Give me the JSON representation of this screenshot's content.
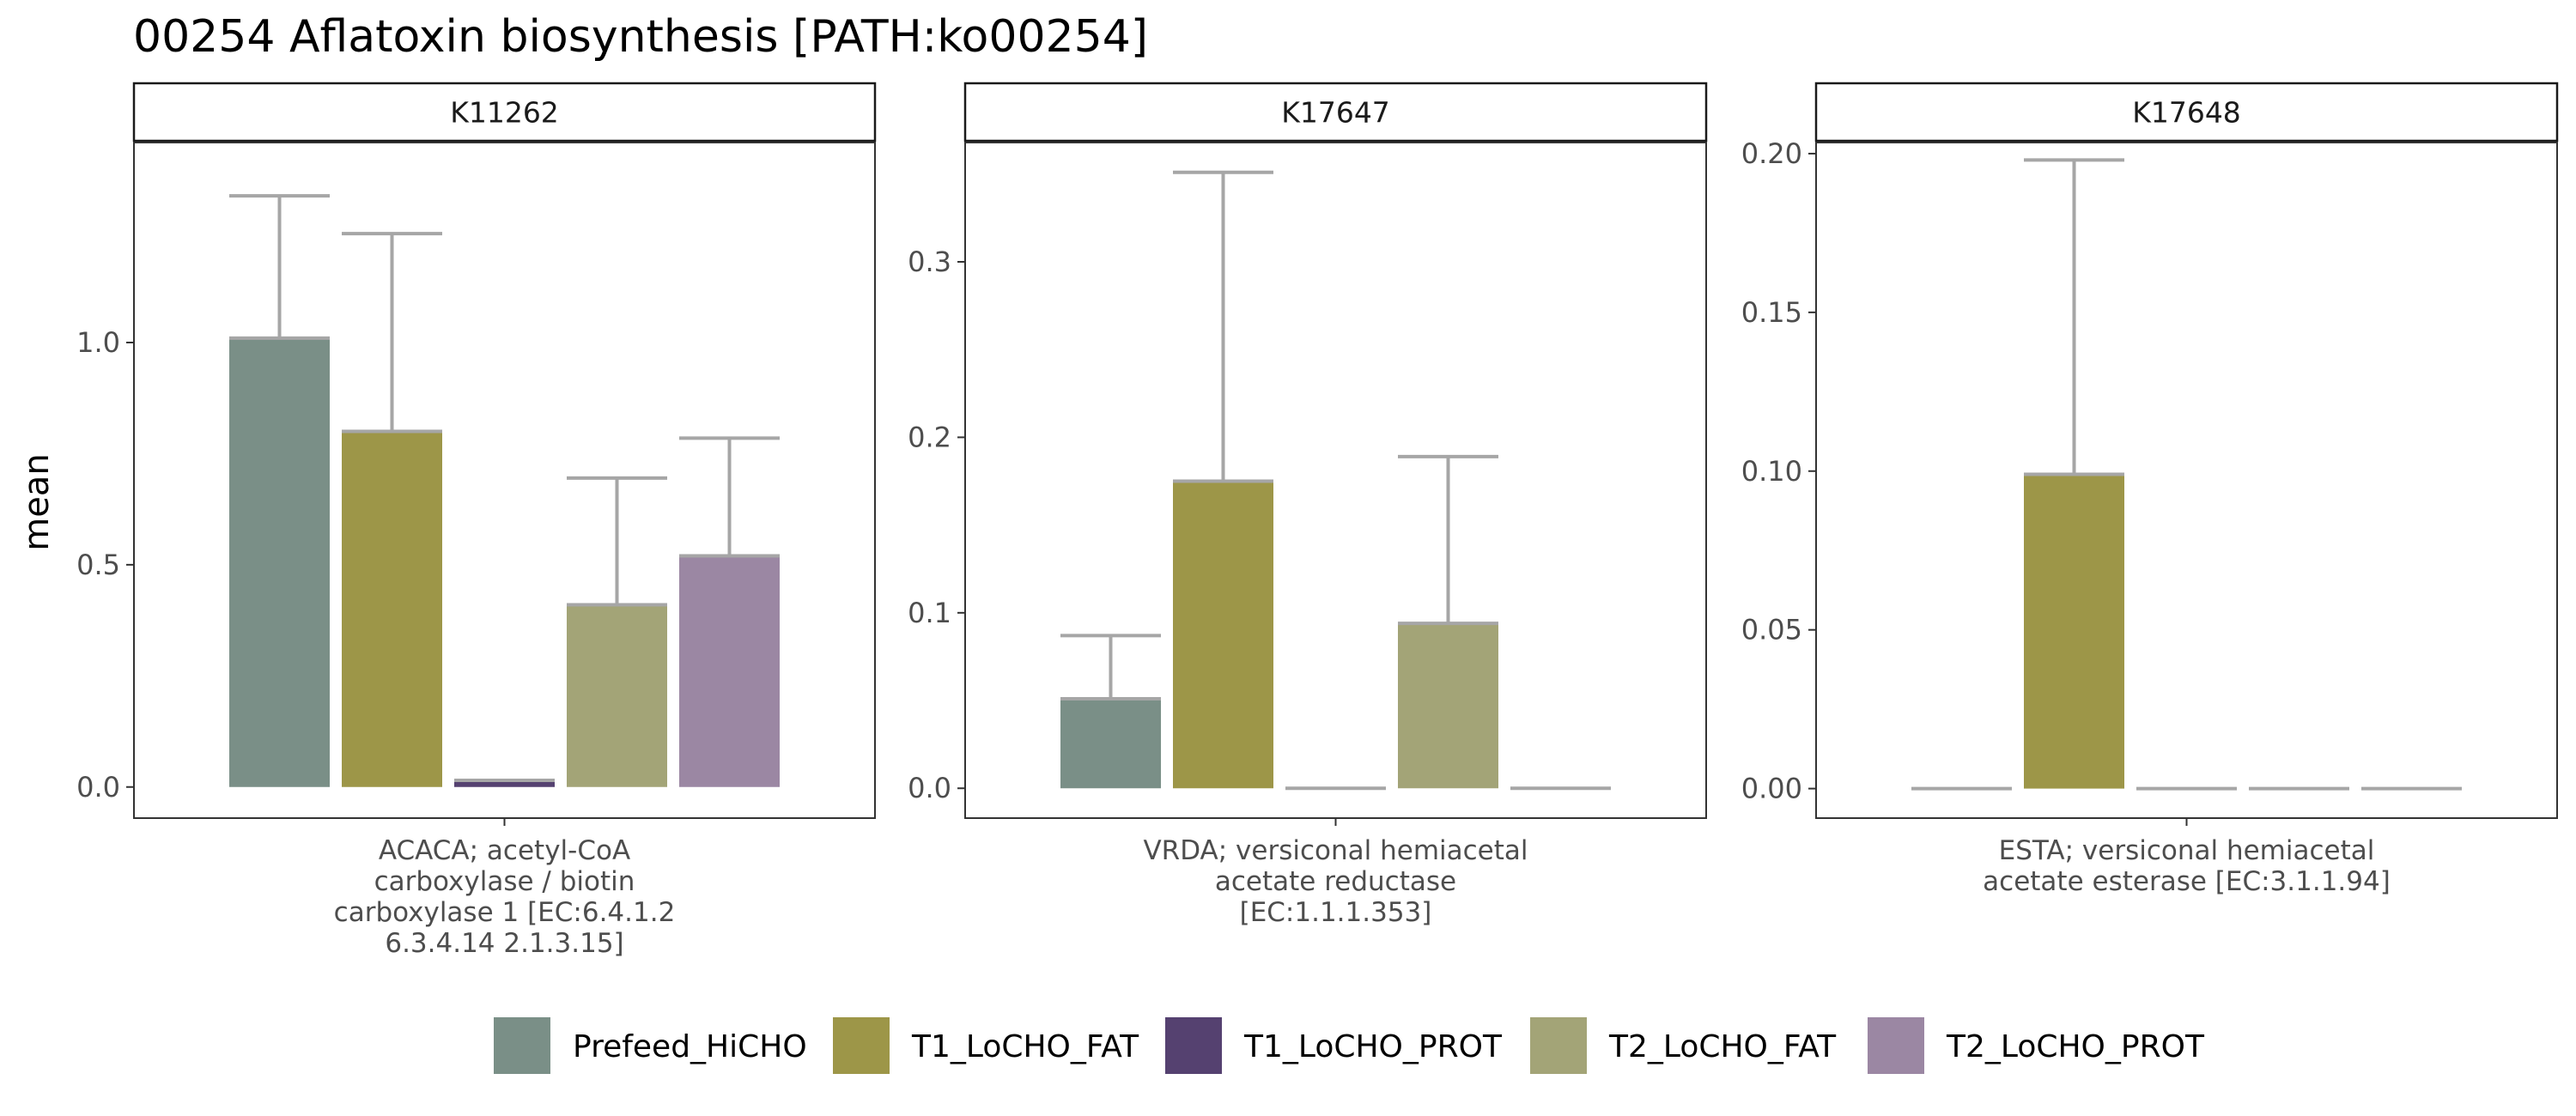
{
  "title": "00254 Aflatoxin biosynthesis [PATH:ko00254]",
  "colors": {
    "Prefeed_HiCHO": "#7a8f87",
    "T1_LoCHO_FAT": "#9d9648",
    "T1_LoCHO_PROT": "#554170",
    "T2_LoCHO_FAT": "#a3a477",
    "T2_LoCHO_PROT": "#9b87a3",
    "errorbar": "#a6a6a6",
    "panel_border": "#333333",
    "strip_border": "#1a1a1a"
  },
  "chart_data": {
    "type": "bar",
    "ylabel": "mean",
    "groups": [
      "Prefeed_HiCHO",
      "T1_LoCHO_FAT",
      "T1_LoCHO_PROT",
      "T2_LoCHO_FAT",
      "T2_LoCHO_PROT"
    ],
    "legend": {
      "position": "bottom",
      "entries": [
        "Prefeed_HiCHO",
        "T1_LoCHO_FAT",
        "T1_LoCHO_PROT",
        "T2_LoCHO_FAT",
        "T2_LoCHO_PROT"
      ]
    },
    "grid": false,
    "panels": [
      {
        "strip": "K11262",
        "category_lines": [
          "ACACA; acetyl-CoA",
          "carboxylase / biotin",
          "carboxylase 1 [EC:6.4.1.2",
          "6.3.4.14 2.1.3.15]"
        ],
        "ylim": [
          -0.07,
          1.45
        ],
        "yticks": [
          0.0,
          0.5,
          1.0
        ],
        "ytick_labels": [
          "0.0",
          "0.5",
          "1.0"
        ],
        "means": [
          1.01,
          0.8,
          0.015,
          0.41,
          0.52
        ],
        "error_upper": [
          1.33,
          1.245,
          0.015,
          0.695,
          0.785
        ]
      },
      {
        "strip": "K17647",
        "category_lines": [
          "VRDA; versiconal hemiacetal",
          "acetate reductase",
          "[EC:1.1.1.353]"
        ],
        "ylim": [
          -0.017,
          0.368
        ],
        "yticks": [
          0.0,
          0.1,
          0.2,
          0.3
        ],
        "ytick_labels": [
          "0.0",
          "0.1",
          "0.2",
          "0.3"
        ],
        "means": [
          0.051,
          0.175,
          0.0,
          0.094,
          0.0
        ],
        "error_upper": [
          0.087,
          0.351,
          0.0,
          0.189,
          0.0
        ]
      },
      {
        "strip": "K17648",
        "category_lines": [
          "ESTA; versiconal hemiacetal",
          "acetate esterase [EC:3.1.1.94]"
        ],
        "ylim": [
          -0.0093,
          0.2035
        ],
        "yticks": [
          0.0,
          0.05,
          0.1,
          0.15,
          0.2
        ],
        "ytick_labels": [
          "0.00",
          "0.05",
          "0.10",
          "0.15",
          "0.20"
        ],
        "means": [
          0.0,
          0.099,
          0.0,
          0.0,
          0.0
        ],
        "error_upper": [
          0.0,
          0.198,
          0.0,
          0.0,
          0.0
        ]
      }
    ]
  }
}
